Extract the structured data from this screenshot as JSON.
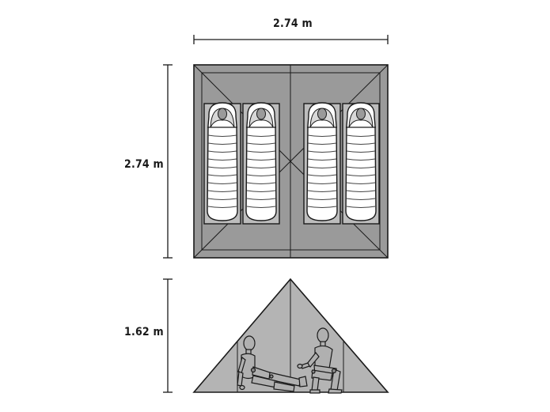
{
  "dimensions": {
    "width": "2.74 m",
    "depth": "2.74 m",
    "height": "1.62 m"
  },
  "colors": {
    "floor": "#9a9a9a",
    "outline": "#1a1a1a",
    "pad": "#bdbdbd",
    "bag": "#ffffff",
    "side_fill": "#b4b4b4",
    "figure": "#b0b0b0"
  },
  "icons": {
    "sleeper": "sleeping-bag-person-icon",
    "figure": "wooden-mannequin-icon"
  }
}
